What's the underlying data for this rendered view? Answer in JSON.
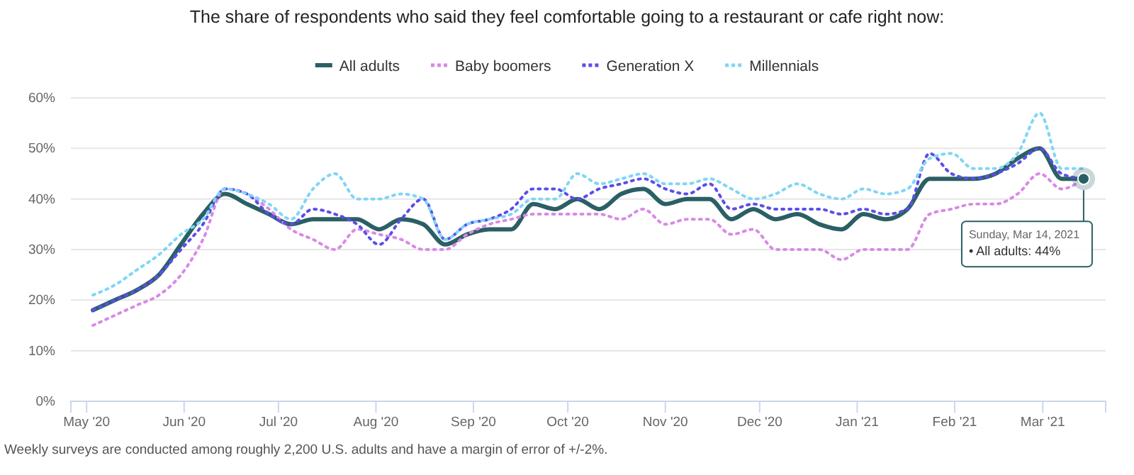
{
  "chart_data": {
    "type": "line",
    "title": "The share of respondents who said they feel comfortable going to a restaurant or cafe right now:",
    "x": [
      "2020-05-03",
      "2020-05-10",
      "2020-05-17",
      "2020-05-24",
      "2020-05-31",
      "2020-06-07",
      "2020-06-14",
      "2020-06-21",
      "2020-06-28",
      "2020-07-05",
      "2020-07-12",
      "2020-07-19",
      "2020-07-26",
      "2020-08-02",
      "2020-08-09",
      "2020-08-16",
      "2020-08-23",
      "2020-08-30",
      "2020-09-06",
      "2020-09-13",
      "2020-09-20",
      "2020-09-27",
      "2020-10-04",
      "2020-10-11",
      "2020-10-18",
      "2020-10-25",
      "2020-11-01",
      "2020-11-08",
      "2020-11-15",
      "2020-11-22",
      "2020-11-29",
      "2020-12-06",
      "2020-12-13",
      "2020-12-20",
      "2020-12-27",
      "2021-01-03",
      "2021-01-10",
      "2021-01-17",
      "2021-01-24",
      "2021-01-31",
      "2021-02-07",
      "2021-02-14",
      "2021-02-21",
      "2021-02-28",
      "2021-03-07",
      "2021-03-14"
    ],
    "series": [
      {
        "name": "All adults",
        "color": "#2b5f66",
        "line_style": "solid",
        "values": [
          18,
          20,
          22,
          25,
          31,
          37,
          41,
          39,
          37,
          35,
          36,
          36,
          36,
          34,
          36,
          35,
          31,
          33,
          34,
          34,
          39,
          38,
          40,
          38,
          41,
          42,
          39,
          40,
          40,
          36,
          38,
          36,
          37,
          35,
          34,
          37,
          36,
          38,
          44,
          44,
          44,
          45,
          48,
          50,
          44,
          44
        ]
      },
      {
        "name": "Baby boomers",
        "color": "#d98ae6",
        "line_style": "dotted",
        "values": [
          15,
          17,
          19,
          21,
          25,
          32,
          42,
          41,
          38,
          34,
          32,
          30,
          34,
          33,
          32,
          30,
          30,
          33,
          35,
          36,
          37,
          37,
          37,
          37,
          36,
          38,
          35,
          36,
          36,
          33,
          34,
          30,
          30,
          30,
          28,
          30,
          30,
          30,
          37,
          38,
          39,
          39,
          41,
          45,
          42,
          44
        ]
      },
      {
        "name": "Generation X",
        "color": "#5b4ee8",
        "line_style": "dotted",
        "values": [
          18,
          20,
          22,
          25,
          30,
          35,
          42,
          41,
          37,
          35,
          38,
          37,
          35,
          31,
          36,
          40,
          32,
          35,
          36,
          38,
          42,
          42,
          40,
          42,
          43,
          44,
          42,
          41,
          43,
          38,
          39,
          38,
          38,
          38,
          37,
          38,
          37,
          38,
          49,
          45,
          44,
          45,
          47,
          50,
          45,
          44
        ]
      },
      {
        "name": "Millennials",
        "color": "#7fd6f5",
        "line_style": "dotted",
        "values": [
          21,
          23,
          26,
          29,
          33,
          36,
          42,
          41,
          39,
          36,
          42,
          45,
          40,
          40,
          41,
          40,
          32,
          35,
          36,
          37,
          40,
          40,
          45,
          43,
          44,
          45,
          43,
          43,
          44,
          42,
          40,
          41,
          43,
          41,
          40,
          42,
          41,
          42,
          48,
          49,
          46,
          46,
          49,
          57,
          46,
          46
        ]
      }
    ],
    "xlim": [
      "2020-04-26",
      "2021-03-21"
    ],
    "xticks": [
      {
        "value": "2020-05-01",
        "label": "May '20"
      },
      {
        "value": "2020-06-01",
        "label": "Jun '20"
      },
      {
        "value": "2020-07-01",
        "label": "Jul '20"
      },
      {
        "value": "2020-08-01",
        "label": "Aug '20"
      },
      {
        "value": "2020-09-01",
        "label": "Sep '20"
      },
      {
        "value": "2020-10-01",
        "label": "Oct '20"
      },
      {
        "value": "2020-11-01",
        "label": "Nov '20"
      },
      {
        "value": "2020-12-01",
        "label": "Dec '20"
      },
      {
        "value": "2021-01-01",
        "label": "Jan '21"
      },
      {
        "value": "2021-02-01",
        "label": "Feb '21"
      },
      {
        "value": "2021-03-01",
        "label": "Mar '21"
      }
    ],
    "ylim": [
      0,
      60
    ],
    "yticks": [
      {
        "value": 0,
        "label": "0%"
      },
      {
        "value": 10,
        "label": "10%"
      },
      {
        "value": 20,
        "label": "20%"
      },
      {
        "value": 30,
        "label": "30%"
      },
      {
        "value": 40,
        "label": "40%"
      },
      {
        "value": 50,
        "label": "50%"
      },
      {
        "value": 60,
        "label": "60%"
      }
    ],
    "grid": "y",
    "legend": "top",
    "annotations": [
      {
        "text": "Sunday, Mar 14, 2021\n• All adults: 44%",
        "x": "2021-03-14",
        "y": 44
      },
      "Weekly surveys are conducted among roughly 2,200 U.S. adults and have a margin of error of +/-2%."
    ]
  }
}
